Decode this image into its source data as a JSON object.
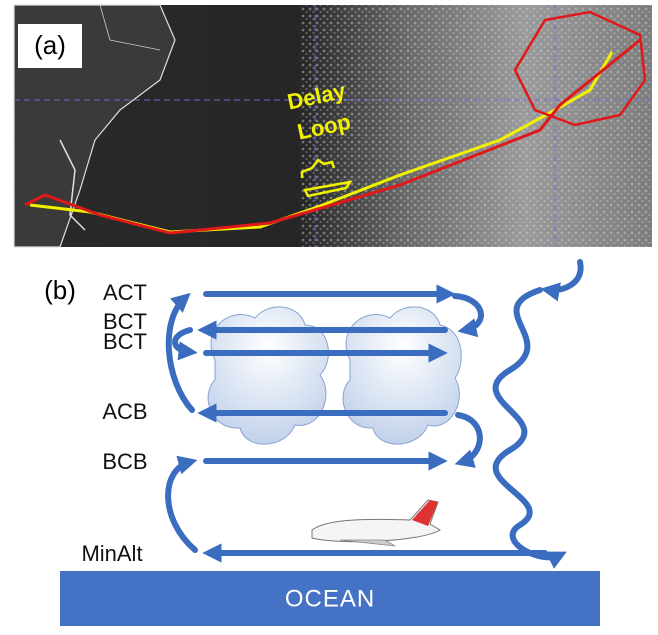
{
  "panel_a": {
    "label": "(a)",
    "annotation": [
      "Delay",
      "Loop"
    ]
  },
  "panel_b": {
    "label": "(b)",
    "levels": [
      "ACT",
      "BCT",
      "BCT",
      "ACB",
      "BCB",
      "MinAlt"
    ],
    "surface": "OCEAN"
  }
}
